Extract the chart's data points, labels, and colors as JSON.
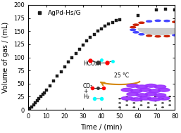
{
  "x": [
    0,
    1,
    2,
    3,
    4,
    5,
    6,
    7,
    8,
    9,
    10,
    12,
    14,
    16,
    18,
    20,
    22,
    24,
    26,
    28,
    30,
    32,
    34,
    36,
    38,
    40,
    42,
    44,
    46,
    48,
    50,
    60,
    70,
    75,
    80
  ],
  "y": [
    0,
    3,
    6,
    9,
    13,
    17,
    21,
    25,
    29,
    33,
    38,
    46,
    55,
    64,
    73,
    82,
    91,
    100,
    108,
    116,
    124,
    132,
    138,
    144,
    150,
    155,
    160,
    164,
    167,
    170,
    172,
    180,
    190,
    192,
    190
  ],
  "marker": "s",
  "marker_color": "#1a1a1a",
  "marker_size": 3.5,
  "legend_label": "AgPd-Hs/G",
  "xlabel": "Time / (min)",
  "ylabel": "Volume of gas / (mL)",
  "xlim": [
    0,
    80
  ],
  "ylim": [
    0,
    200
  ],
  "xticks": [
    0,
    10,
    20,
    30,
    40,
    50,
    60,
    70,
    80
  ],
  "yticks": [
    0,
    25,
    50,
    75,
    100,
    125,
    150,
    175,
    200
  ],
  "bg_color": "#ffffff",
  "axis_fontsize": 7,
  "tick_fontsize": 6,
  "legend_fontsize": 6.5,
  "annot_hco2h": "HCO₂H",
  "annot_co2": "CO₂",
  "annot_plus": "+",
  "annot_h2": "H₂",
  "annot_temp": "25 °C",
  "graphene_color": "#2a2a2a",
  "sphere_purple": "#9b30ff",
  "arrow_color": "#d4860a"
}
